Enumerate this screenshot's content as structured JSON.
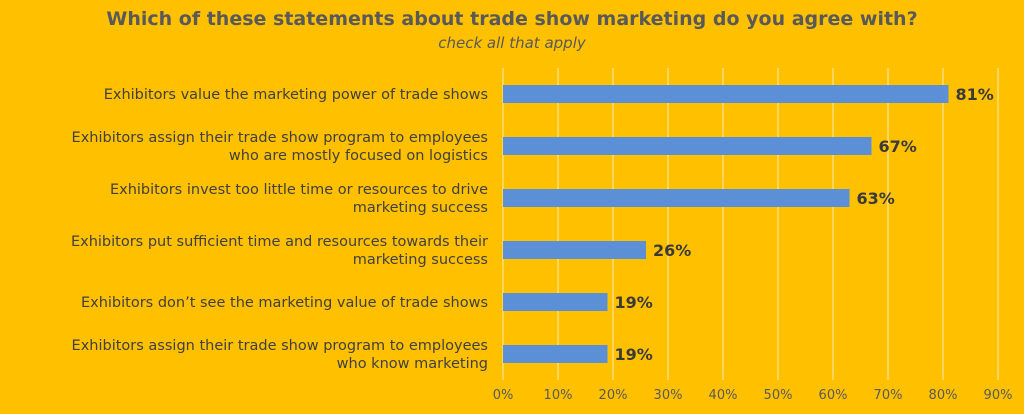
{
  "chart_data": {
    "type": "bar",
    "orientation": "horizontal",
    "title": "Which of these statements about trade show marketing do you agree with?",
    "subtitle": "check all that apply",
    "categories": [
      [
        "Exhibitors value the marketing power of trade shows"
      ],
      [
        "Exhibitors assign their trade show program to employees",
        "who are mostly focused on logistics"
      ],
      [
        "Exhibitors invest too little time or resources to drive",
        "marketing success"
      ],
      [
        "Exhibitors put sufficient time and resources towards their",
        "marketing success"
      ],
      [
        "Exhibitors don’t see the marketing value of trade shows"
      ],
      [
        "Exhibitors assign their trade show program to employees",
        "who know marketing"
      ]
    ],
    "values": [
      81,
      67,
      63,
      26,
      19,
      19
    ],
    "data_labels": [
      "81%",
      "67%",
      "63%",
      "26%",
      "19%",
      "19%"
    ],
    "xlim": [
      0,
      90
    ],
    "x_ticks": [
      0,
      10,
      20,
      30,
      40,
      50,
      60,
      70,
      80,
      90
    ],
    "x_tick_labels": [
      "0%",
      "10%",
      "20%",
      "30%",
      "40%",
      "50%",
      "60%",
      "70%",
      "80%",
      "90%"
    ],
    "grid": true,
    "bar_color": "#5B8FD6",
    "background_color": "#FFC000",
    "gridline_color": "#FFFFFF"
  }
}
